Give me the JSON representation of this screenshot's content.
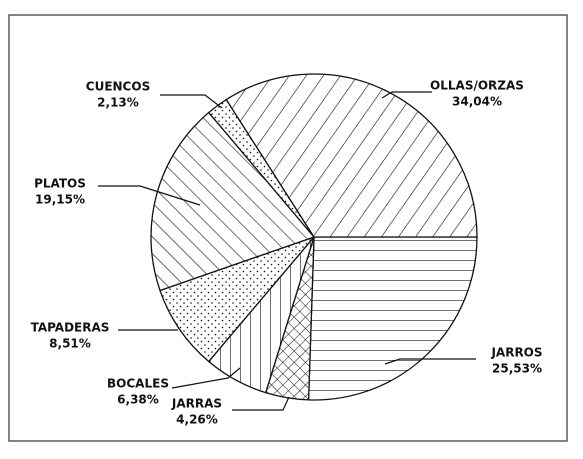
{
  "chart_data": {
    "type": "pie",
    "categories": [
      "JARROS",
      "JARRAS",
      "BOCALES",
      "TAPADERAS",
      "PLATOS",
      "CUENCOS",
      "OLLAS/ORZAS"
    ],
    "values": [
      25.53,
      4.26,
      6.38,
      8.51,
      19.15,
      2.13,
      34.04
    ],
    "value_labels": [
      "25,53%",
      "4,26%",
      "6,38%",
      "8,51%",
      "19,15%",
      "2,13%",
      "34,04%"
    ]
  }
}
